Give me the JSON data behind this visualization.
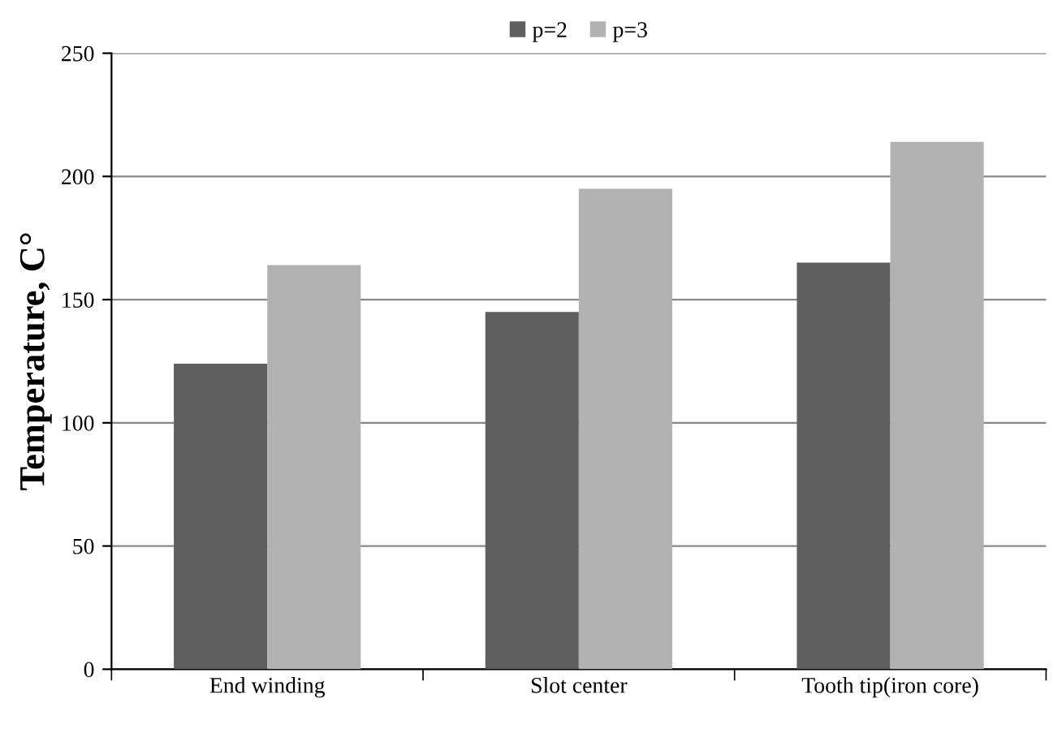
{
  "chart_data": {
    "type": "bar",
    "ylabel": "Temperature, C°",
    "categories": [
      "End winding",
      "Slot center",
      "Tooth tip(iron core)"
    ],
    "series": [
      {
        "name": "p=2",
        "color": "#5f5f5f",
        "values": [
          124,
          145,
          165
        ]
      },
      {
        "name": "p=3",
        "color": "#b2b2b2",
        "values": [
          164,
          195,
          214
        ]
      }
    ],
    "ylim": [
      0,
      250
    ],
    "yticks": [
      0,
      50,
      100,
      150,
      200,
      250
    ],
    "grid": "y",
    "legend": "top"
  }
}
